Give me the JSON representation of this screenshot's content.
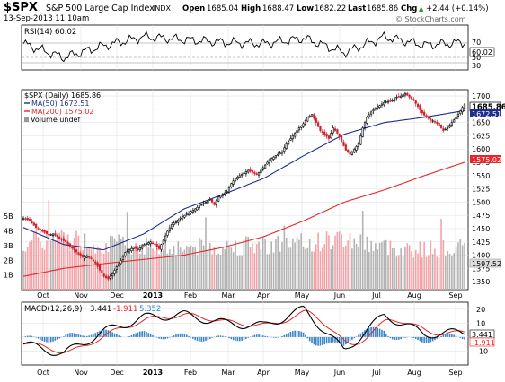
{
  "header": {
    "symbol": "$SPX",
    "name": "S&P 500 Large Cap Index",
    "exchange": "INDX",
    "datetime": "13-Sep-2013 11:10am",
    "open_label": "Open",
    "open": "1685.04",
    "high_label": "High",
    "high": "1688.47",
    "low_label": "Low",
    "low": "1682.22",
    "last_label": "Last",
    "last": "1685.86",
    "chg_label": "Chg",
    "chg": "+2.44 (+0.14%)",
    "arrow": "▲",
    "copyright": "© StockCharts.com"
  },
  "rsi_panel": {
    "label": "RSI(14) 60.02",
    "value": "60.02",
    "ticks": [
      "70",
      "50",
      "30"
    ]
  },
  "price_panel": {
    "legend_price": "$SPX (Daily) 1685.86",
    "legend_ma50": "MA(50) 1672.51",
    "legend_ma200": "MA(200) 1575.02",
    "legend_volume": "Volume undef",
    "price_ticks": [
      "1700",
      "1675",
      "1650",
      "1625",
      "1600",
      "1575",
      "1550",
      "1525",
      "1500",
      "1475",
      "1450",
      "1425",
      "1400",
      "1375",
      "1350"
    ],
    "volume_ticks": [
      "5B",
      "4B",
      "3B",
      "2B",
      "1B"
    ],
    "value_boxes": {
      "last": "1685.86",
      "ma50": "1672.51",
      "ma200": "1575.02",
      "volume": "1597.52"
    }
  },
  "macd_panel": {
    "label_prefix": "MACD(12,26,9)",
    "macd": "3.441",
    "signal": "-1.911",
    "hist": "5.352",
    "ticks": [
      "20",
      "10",
      "0",
      "-10"
    ],
    "box_macd": "3.441",
    "box_signal": "-1.911"
  },
  "x_axis": {
    "labels": [
      "Oct",
      "Nov",
      "Dec",
      "2013",
      "Feb",
      "Mar",
      "Apr",
      "May",
      "Jun",
      "Jul",
      "Aug",
      "Sep"
    ]
  },
  "colors": {
    "up_candle": "#000000",
    "down_candle": "#d1212a",
    "ma50": "#1f2e8c",
    "ma200": "#e8262a",
    "volume_up": "#b3b3b3",
    "volume_down": "#f3a3a7",
    "macd_line": "#000000",
    "signal_line": "#e8262a",
    "histogram": "#3a86c8",
    "grid": "#e3e3e3"
  },
  "chart_data": [
    {
      "type": "line",
      "title": "RSI(14) 60.02",
      "ylim": [
        0,
        100
      ],
      "reference_lines": [
        70,
        50,
        30
      ],
      "series": [
        {
          "name": "RSI(14)",
          "x": [
            "Oct",
            "Nov",
            "Dec",
            "2013",
            "Feb",
            "Mar",
            "Apr",
            "May",
            "Jun",
            "Jul",
            "Aug",
            "Sep"
          ],
          "values": [
            58,
            38,
            55,
            68,
            64,
            60,
            58,
            66,
            45,
            68,
            56,
            60
          ]
        }
      ]
    },
    {
      "type": "candlestick",
      "title": "$SPX (Daily) 1685.86",
      "ylim": [
        1335,
        1712
      ],
      "x": [
        "Oct",
        "Nov",
        "Dec",
        "2013",
        "Feb",
        "Mar",
        "Apr",
        "May",
        "Jun",
        "Jul",
        "Aug",
        "Sep"
      ],
      "close_path": [
        [
          0,
          1470
        ],
        [
          3,
          1465
        ],
        [
          6,
          1452
        ],
        [
          9,
          1445
        ],
        [
          12,
          1438
        ],
        [
          14,
          1440
        ],
        [
          17,
          1432
        ],
        [
          20,
          1425
        ],
        [
          22,
          1416
        ],
        [
          24,
          1410
        ],
        [
          26,
          1402
        ],
        [
          28,
          1396
        ],
        [
          30,
          1398
        ],
        [
          32,
          1393
        ],
        [
          34,
          1385
        ],
        [
          36,
          1372
        ],
        [
          38,
          1360
        ],
        [
          40,
          1355
        ],
        [
          42,
          1365
        ],
        [
          44,
          1378
        ],
        [
          46,
          1390
        ],
        [
          48,
          1405
        ],
        [
          50,
          1410
        ],
        [
          52,
          1415
        ],
        [
          54,
          1410
        ],
        [
          56,
          1418
        ],
        [
          58,
          1422
        ],
        [
          60,
          1425
        ],
        [
          62,
          1420
        ],
        [
          64,
          1412
        ],
        [
          66,
          1428
        ],
        [
          68,
          1445
        ],
        [
          70,
          1458
        ],
        [
          72,
          1463
        ],
        [
          74,
          1470
        ],
        [
          76,
          1475
        ],
        [
          78,
          1480
        ],
        [
          80,
          1485
        ],
        [
          82,
          1490
        ],
        [
          84,
          1495
        ],
        [
          86,
          1500
        ],
        [
          88,
          1505
        ],
        [
          90,
          1495
        ],
        [
          92,
          1510
        ],
        [
          94,
          1515
        ],
        [
          96,
          1520
        ],
        [
          98,
          1535
        ],
        [
          100,
          1545
        ],
        [
          102,
          1550
        ],
        [
          104,
          1555
        ],
        [
          106,
          1560
        ],
        [
          108,
          1556
        ],
        [
          110,
          1552
        ],
        [
          112,
          1560
        ],
        [
          114,
          1570
        ],
        [
          116,
          1580
        ],
        [
          118,
          1585
        ],
        [
          120,
          1590
        ],
        [
          122,
          1595
        ],
        [
          124,
          1610
        ],
        [
          126,
          1620
        ],
        [
          128,
          1630
        ],
        [
          130,
          1640
        ],
        [
          132,
          1648
        ],
        [
          134,
          1660
        ],
        [
          136,
          1665
        ],
        [
          138,
          1650
        ],
        [
          140,
          1635
        ],
        [
          142,
          1628
        ],
        [
          144,
          1620
        ],
        [
          146,
          1640
        ],
        [
          148,
          1630
        ],
        [
          150,
          1615
        ],
        [
          152,
          1598
        ],
        [
          154,
          1590
        ],
        [
          156,
          1600
        ],
        [
          158,
          1610
        ],
        [
          160,
          1640
        ],
        [
          162,
          1660
        ],
        [
          164,
          1670
        ],
        [
          166,
          1678
        ],
        [
          168,
          1682
        ],
        [
          170,
          1688
        ],
        [
          172,
          1690
        ],
        [
          174,
          1692
        ],
        [
          176,
          1698
        ],
        [
          178,
          1700
        ],
        [
          180,
          1705
        ],
        [
          182,
          1698
        ],
        [
          184,
          1692
        ],
        [
          186,
          1680
        ],
        [
          188,
          1668
        ],
        [
          190,
          1660
        ],
        [
          192,
          1655
        ],
        [
          194,
          1652
        ],
        [
          196,
          1645
        ],
        [
          198,
          1635
        ],
        [
          200,
          1640
        ],
        [
          202,
          1650
        ],
        [
          204,
          1660
        ],
        [
          206,
          1672
        ],
        [
          208,
          1685
        ]
      ],
      "series": [
        {
          "name": "MA(50) 1672.51",
          "x": [
            "Oct",
            "Nov",
            "Dec",
            "2013",
            "Feb",
            "Mar",
            "Apr",
            "May",
            "Jun",
            "Jul",
            "Aug",
            "Sep"
          ],
          "values": [
            1452,
            1420,
            1410,
            1440,
            1487,
            1515,
            1545,
            1588,
            1628,
            1650,
            1660,
            1672.51
          ]
        },
        {
          "name": "MA(200) 1575.02",
          "x": [
            "Oct",
            "Nov",
            "Dec",
            "2013",
            "Feb",
            "Mar",
            "Apr",
            "May",
            "Jun",
            "Jul",
            "Aug",
            "Sep"
          ],
          "values": [
            1360,
            1375,
            1384,
            1392,
            1400,
            1415,
            1435,
            1465,
            1500,
            1523,
            1550,
            1575.02
          ]
        }
      ]
    },
    {
      "type": "bar",
      "title": "Volume undef",
      "ylim": [
        0,
        5.5
      ],
      "x": [
        "Oct",
        "Nov",
        "Dec",
        "2013",
        "Feb",
        "Mar",
        "Apr",
        "May",
        "Jun",
        "Jul",
        "Aug",
        "Sep"
      ],
      "values_billions": [
        3.3,
        3.6,
        3.2,
        3.1,
        3.0,
        3.0,
        3.2,
        3.2,
        3.6,
        3.0,
        2.8,
        2.9
      ]
    },
    {
      "type": "line",
      "title": "MACD(12,26,9) 3.441, -1.911, 5.352",
      "ylim": [
        -20,
        25
      ],
      "series": [
        {
          "name": "MACD(12,26,9)",
          "x": [
            "Oct",
            "Nov",
            "Dec",
            "2013",
            "Feb",
            "Mar",
            "Apr",
            "May",
            "Jun",
            "Jul",
            "Aug",
            "Sep"
          ],
          "values": [
            -5,
            -12,
            4,
            14,
            16,
            10,
            8,
            20,
            -10,
            16,
            2,
            3.441
          ]
        },
        {
          "name": "Signal",
          "x": [
            "Oct",
            "Nov",
            "Dec",
            "2013",
            "Feb",
            "Mar",
            "Apr",
            "May",
            "Jun",
            "Jul",
            "Aug",
            "Sep"
          ],
          "values": [
            -2,
            -8,
            -2,
            10,
            14,
            12,
            8,
            18,
            -4,
            10,
            6,
            -1.911
          ]
        },
        {
          "name": "Histogram",
          "x": [
            "Oct",
            "Nov",
            "Dec",
            "2013",
            "Feb",
            "Mar",
            "Apr",
            "May",
            "Jun",
            "Jul",
            "Aug",
            "Sep"
          ],
          "values": [
            -3,
            -4,
            6,
            4,
            2,
            -2,
            0,
            2,
            -6,
            6,
            -4,
            5.352
          ]
        }
      ]
    }
  ]
}
